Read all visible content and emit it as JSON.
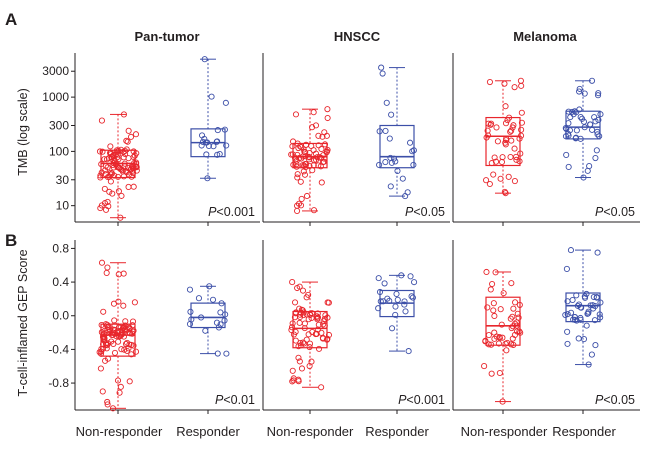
{
  "figure": {
    "row_letters": [
      "A",
      "B"
    ],
    "group_labels": [
      "Non-responder",
      "Responder"
    ],
    "panel_titles": [
      "Pan-tumor",
      "HNSCC",
      "Melanoma"
    ],
    "colors": {
      "non_responder": "#e8262c",
      "responder": "#3c4fa8",
      "axis": "#231f20"
    }
  },
  "chart_data": [
    {
      "id": "A",
      "type": "boxplot",
      "scale": "log",
      "ylabel": "TMB (log scale)",
      "yticks": [
        10,
        30,
        100,
        300,
        1000,
        3000
      ],
      "ytick_labels": [
        "10",
        "30",
        "100",
        "300",
        "1000",
        "3000"
      ],
      "ylim": [
        5,
        6500
      ],
      "categories": [
        "Non-responder",
        "Responder"
      ],
      "panels": [
        {
          "title": "Pan-tumor",
          "p_label": "P<0.001",
          "boxes": [
            {
              "group": "Non-responder",
              "min": 6,
              "q1": 33,
              "median": 60,
              "q3": 105,
              "max": 480,
              "n": 105
            },
            {
              "group": "Responder",
              "min": 32,
              "q1": 80,
              "median": 145,
              "q3": 260,
              "max": 5000,
              "n": 20
            }
          ]
        },
        {
          "title": "HNSCC",
          "p_label": "P<0.05",
          "boxes": [
            {
              "group": "Non-responder",
              "min": 8,
              "q1": 50,
              "median": 80,
              "q3": 140,
              "max": 600,
              "n": 80
            },
            {
              "group": "Responder",
              "min": 15,
              "q1": 50,
              "median": 80,
              "q3": 300,
              "max": 3500,
              "n": 22
            }
          ]
        },
        {
          "title": "Melanoma",
          "p_label": "P<0.05",
          "boxes": [
            {
              "group": "Non-responder",
              "min": 17,
              "q1": 55,
              "median": 190,
              "q3": 420,
              "max": 2000,
              "n": 50
            },
            {
              "group": "Responder",
              "min": 33,
              "q1": 170,
              "median": 280,
              "q3": 550,
              "max": 2000,
              "n": 45
            }
          ]
        }
      ]
    },
    {
      "id": "B",
      "type": "boxplot",
      "scale": "linear",
      "ylabel": "T-cell-inflamed GEP Score",
      "yticks": [
        -0.8,
        -0.4,
        0.0,
        0.4,
        0.8
      ],
      "ytick_labels": [
        "-0.8",
        "-0.4",
        "0.0",
        "0.4",
        "0.8"
      ],
      "ylim": [
        -1.12,
        0.9
      ],
      "categories": [
        "Non-responder",
        "Responder"
      ],
      "panels": [
        {
          "title": "Pan-tumor",
          "p_label": "P<0.01",
          "boxes": [
            {
              "group": "Non-responder",
              "min": -1.1,
              "q1": -0.48,
              "median": -0.23,
              "q3": -0.1,
              "max": 0.63,
              "n": 105
            },
            {
              "group": "Responder",
              "min": -0.45,
              "q1": -0.14,
              "median": -0.02,
              "q3": 0.15,
              "max": 0.35,
              "n": 18
            }
          ]
        },
        {
          "title": "HNSCC",
          "p_label": "P<0.001",
          "boxes": [
            {
              "group": "Non-responder",
              "min": -0.85,
              "q1": -0.38,
              "median": -0.15,
              "q3": 0.05,
              "max": 0.4,
              "n": 80
            },
            {
              "group": "Responder",
              "min": -0.42,
              "q1": -0.01,
              "median": 0.15,
              "q3": 0.3,
              "max": 0.48,
              "n": 22
            }
          ]
        },
        {
          "title": "Melanoma",
          "p_label": "P<0.05",
          "boxes": [
            {
              "group": "Non-responder",
              "min": -1.02,
              "q1": -0.35,
              "median": -0.12,
              "q3": 0.22,
              "max": 0.52,
              "n": 50
            },
            {
              "group": "Responder",
              "min": -0.58,
              "q1": -0.07,
              "median": 0.12,
              "q3": 0.27,
              "max": 0.78,
              "n": 45
            }
          ]
        }
      ]
    }
  ]
}
